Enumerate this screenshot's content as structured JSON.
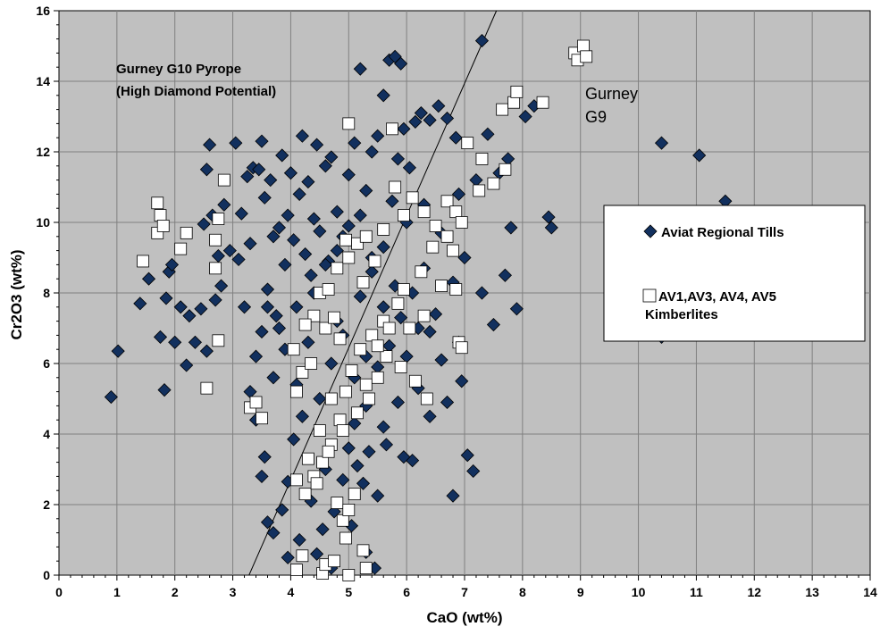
{
  "colors": {
    "plot_background": "#c0c0c0",
    "gridline": "#808080",
    "till_marker": "#12305e",
    "kimberlite_marker": "#ffffff"
  },
  "chart_data": {
    "type": "scatter",
    "xlabel": "CaO (wt%)",
    "ylabel": "Cr2O3 (wt%)",
    "xlim": [
      0,
      14
    ],
    "ylim": [
      0,
      16
    ],
    "x_ticks": [
      "0",
      "1",
      "2",
      "3",
      "4",
      "5",
      "6",
      "7",
      "8",
      "9",
      "10",
      "11",
      "12",
      "13",
      "14"
    ],
    "y_ticks": [
      "0",
      "2",
      "4",
      "6",
      "8",
      "10",
      "12",
      "14",
      "16"
    ],
    "grid": true,
    "legend_position": "right",
    "annotations": [
      {
        "id": "g10-line1",
        "text": "Gurney G10 Pyrope"
      },
      {
        "id": "g10-line2",
        "text": "(High Diamond Potential)"
      },
      {
        "id": "g9-line1",
        "text": "Gurney"
      },
      {
        "id": "g9-line2",
        "text": "G9"
      }
    ],
    "divider_line": {
      "x1": 3.28,
      "y1": 0,
      "x2": 7.55,
      "y2": 16
    },
    "series": [
      {
        "name": "Aviat Regional Tills",
        "marker": "diamond",
        "points": [
          [
            0.9,
            5.05
          ],
          [
            1.02,
            6.35
          ],
          [
            1.4,
            7.7
          ],
          [
            1.55,
            8.4
          ],
          [
            1.75,
            6.75
          ],
          [
            1.85,
            7.85
          ],
          [
            1.82,
            5.25
          ],
          [
            1.9,
            8.6
          ],
          [
            1.95,
            8.8
          ],
          [
            2.0,
            6.6
          ],
          [
            2.1,
            7.6
          ],
          [
            2.2,
            5.95
          ],
          [
            2.25,
            7.35
          ],
          [
            2.35,
            6.6
          ],
          [
            2.45,
            7.55
          ],
          [
            2.55,
            6.35
          ],
          [
            2.5,
            9.95
          ],
          [
            2.55,
            11.5
          ],
          [
            2.6,
            12.2
          ],
          [
            2.65,
            10.2
          ],
          [
            2.7,
            7.8
          ],
          [
            2.75,
            9.05
          ],
          [
            2.8,
            8.2
          ],
          [
            2.85,
            10.5
          ],
          [
            2.95,
            9.2
          ],
          [
            3.05,
            12.25
          ],
          [
            3.1,
            8.95
          ],
          [
            3.15,
            10.25
          ],
          [
            3.2,
            7.6
          ],
          [
            3.25,
            11.3
          ],
          [
            3.3,
            9.4
          ],
          [
            3.35,
            11.55
          ],
          [
            3.4,
            6.2
          ],
          [
            3.45,
            11.5
          ],
          [
            3.5,
            12.3
          ],
          [
            3.55,
            10.7
          ],
          [
            3.6,
            8.1
          ],
          [
            3.65,
            11.2
          ],
          [
            3.7,
            9.6
          ],
          [
            3.75,
            7.35
          ],
          [
            3.8,
            9.85
          ],
          [
            3.85,
            11.9
          ],
          [
            3.9,
            8.8
          ],
          [
            3.95,
            10.2
          ],
          [
            4.0,
            11.4
          ],
          [
            4.05,
            9.5
          ],
          [
            4.1,
            7.6
          ],
          [
            4.15,
            10.8
          ],
          [
            4.2,
            12.45
          ],
          [
            4.25,
            9.1
          ],
          [
            4.3,
            11.15
          ],
          [
            4.35,
            8.5
          ],
          [
            4.4,
            10.1
          ],
          [
            4.45,
            12.2
          ],
          [
            4.5,
            9.75
          ],
          [
            4.6,
            11.6
          ],
          [
            4.65,
            8.9
          ],
          [
            4.7,
            11.85
          ],
          [
            4.8,
            10.3
          ],
          [
            4.9,
            9.6
          ],
          [
            5.0,
            11.35
          ],
          [
            5.1,
            12.25
          ],
          [
            5.2,
            14.35
          ],
          [
            5.3,
            10.9
          ],
          [
            5.4,
            12.0
          ],
          [
            5.5,
            12.45
          ],
          [
            5.6,
            13.6
          ],
          [
            5.7,
            14.6
          ],
          [
            5.8,
            14.7
          ],
          [
            5.9,
            14.5
          ],
          [
            5.75,
            10.6
          ],
          [
            5.85,
            11.8
          ],
          [
            5.95,
            12.65
          ],
          [
            6.05,
            11.55
          ],
          [
            6.15,
            12.85
          ],
          [
            6.25,
            13.1
          ],
          [
            6.4,
            12.9
          ],
          [
            6.55,
            13.3
          ],
          [
            6.7,
            12.95
          ],
          [
            6.85,
            12.4
          ],
          [
            7.3,
            15.15
          ],
          [
            7.4,
            12.5
          ],
          [
            7.6,
            11.4
          ],
          [
            7.75,
            11.8
          ],
          [
            7.8,
            9.85
          ],
          [
            8.05,
            13.0
          ],
          [
            8.2,
            13.3
          ],
          [
            8.45,
            10.15
          ],
          [
            8.5,
            9.85
          ],
          [
            7.9,
            7.55
          ],
          [
            7.05,
            3.4
          ],
          [
            7.15,
            2.95
          ],
          [
            6.8,
            2.25
          ],
          [
            6.1,
            3.25
          ],
          [
            5.95,
            3.35
          ],
          [
            5.5,
            2.25
          ],
          [
            5.3,
            0.65
          ],
          [
            5.45,
            0.2
          ],
          [
            4.45,
            0.6
          ],
          [
            4.7,
            0.2
          ],
          [
            3.6,
            1.5
          ],
          [
            3.7,
            1.2
          ],
          [
            3.85,
            1.85
          ],
          [
            3.95,
            2.65
          ],
          [
            4.05,
            3.85
          ],
          [
            3.5,
            2.8
          ],
          [
            3.55,
            3.35
          ],
          [
            3.4,
            4.4
          ],
          [
            3.3,
            5.2
          ],
          [
            3.7,
            5.6
          ],
          [
            10.4,
            12.25
          ],
          [
            11.05,
            11.9
          ],
          [
            11.5,
            10.6
          ],
          [
            10.4,
            6.75
          ],
          [
            6.6,
            6.1
          ],
          [
            6.95,
            5.5
          ],
          [
            6.7,
            4.9
          ],
          [
            6.4,
            4.5
          ],
          [
            6.2,
            5.3
          ],
          [
            5.6,
            4.2
          ],
          [
            4.3,
            6.6
          ],
          [
            4.8,
            7.2
          ],
          [
            5.2,
            7.9
          ],
          [
            5.4,
            8.6
          ],
          [
            5.6,
            9.3
          ],
          [
            6.0,
            10.0
          ],
          [
            6.3,
            10.5
          ],
          [
            6.6,
            9.7
          ],
          [
            6.9,
            10.8
          ],
          [
            7.2,
            11.2
          ],
          [
            4.5,
            5.0
          ],
          [
            4.7,
            6.0
          ],
          [
            4.9,
            6.8
          ],
          [
            5.1,
            5.6
          ],
          [
            5.3,
            4.8
          ],
          [
            5.5,
            5.9
          ],
          [
            5.7,
            6.5
          ],
          [
            5.9,
            7.3
          ],
          [
            6.1,
            8.0
          ],
          [
            6.3,
            8.7
          ],
          [
            6.5,
            7.4
          ],
          [
            6.8,
            8.3
          ],
          [
            7.0,
            9.0
          ],
          [
            7.3,
            8.0
          ],
          [
            7.5,
            7.1
          ],
          [
            7.7,
            8.5
          ],
          [
            6.9,
            6.6
          ],
          [
            6.4,
            6.9
          ],
          [
            5.0,
            3.6
          ],
          [
            4.6,
            3.0
          ],
          [
            4.2,
            4.5
          ],
          [
            4.1,
            5.4
          ],
          [
            3.9,
            6.4
          ],
          [
            3.8,
            7.0
          ],
          [
            3.6,
            7.6
          ],
          [
            3.5,
            6.9
          ],
          [
            4.4,
            8.0
          ],
          [
            4.6,
            8.8
          ],
          [
            4.8,
            9.2
          ],
          [
            5.0,
            9.9
          ],
          [
            5.2,
            10.2
          ],
          [
            5.4,
            9.0
          ],
          [
            5.8,
            8.2
          ],
          [
            6.0,
            6.2
          ],
          [
            6.2,
            7.0
          ],
          [
            5.6,
            7.6
          ],
          [
            5.3,
            6.2
          ],
          [
            5.1,
            4.3
          ],
          [
            4.9,
            2.7
          ],
          [
            4.75,
            1.8
          ],
          [
            5.05,
            1.4
          ],
          [
            5.25,
            2.6
          ],
          [
            4.35,
            2.1
          ],
          [
            4.15,
            1.0
          ],
          [
            3.95,
            0.5
          ],
          [
            4.55,
            1.3
          ],
          [
            5.15,
            3.1
          ],
          [
            5.35,
            3.5
          ],
          [
            5.65,
            3.7
          ],
          [
            5.85,
            4.9
          ]
        ]
      },
      {
        "name": "AV1,AV3, AV4, AV5\nKimberlites",
        "marker": "square",
        "points": [
          [
            1.45,
            8.9
          ],
          [
            1.7,
            9.7
          ],
          [
            1.75,
            10.2
          ],
          [
            1.7,
            10.55
          ],
          [
            1.8,
            9.9
          ],
          [
            2.1,
            9.25
          ],
          [
            2.2,
            9.7
          ],
          [
            2.55,
            5.3
          ],
          [
            2.7,
            8.7
          ],
          [
            2.75,
            10.1
          ],
          [
            2.7,
            9.5
          ],
          [
            2.85,
            11.2
          ],
          [
            2.75,
            6.65
          ],
          [
            3.3,
            4.75
          ],
          [
            3.4,
            4.9
          ],
          [
            3.5,
            4.45
          ],
          [
            4.1,
            5.2
          ],
          [
            4.2,
            5.75
          ],
          [
            4.4,
            7.35
          ],
          [
            4.5,
            8.0
          ],
          [
            4.6,
            7.0
          ],
          [
            4.75,
            7.3
          ],
          [
            4.85,
            6.7
          ],
          [
            4.95,
            9.5
          ],
          [
            5.0,
            12.8
          ],
          [
            5.15,
            9.4
          ],
          [
            5.25,
            8.3
          ],
          [
            5.45,
            8.9
          ],
          [
            5.6,
            9.8
          ],
          [
            5.75,
            12.65
          ],
          [
            5.8,
            11.0
          ],
          [
            5.95,
            10.2
          ],
          [
            6.1,
            10.7
          ],
          [
            6.3,
            10.3
          ],
          [
            6.5,
            9.9
          ],
          [
            6.7,
            10.6
          ],
          [
            6.85,
            10.3
          ],
          [
            7.05,
            12.25
          ],
          [
            7.3,
            11.8
          ],
          [
            7.5,
            11.1
          ],
          [
            7.65,
            13.2
          ],
          [
            7.85,
            13.4
          ],
          [
            7.9,
            13.7
          ],
          [
            8.35,
            13.4
          ],
          [
            8.9,
            14.8
          ],
          [
            9.05,
            15.0
          ],
          [
            8.95,
            14.6
          ],
          [
            9.1,
            14.7
          ],
          [
            7.7,
            11.5
          ],
          [
            7.25,
            10.9
          ],
          [
            6.95,
            10.0
          ],
          [
            6.8,
            9.2
          ],
          [
            6.6,
            8.2
          ],
          [
            6.85,
            8.1
          ],
          [
            6.9,
            6.6
          ],
          [
            6.95,
            6.45
          ],
          [
            6.3,
            7.35
          ],
          [
            6.05,
            7.0
          ],
          [
            5.85,
            7.7
          ],
          [
            5.6,
            7.2
          ],
          [
            5.4,
            6.8
          ],
          [
            5.2,
            6.4
          ],
          [
            5.05,
            5.8
          ],
          [
            4.95,
            5.2
          ],
          [
            4.85,
            4.4
          ],
          [
            4.7,
            3.7
          ],
          [
            4.55,
            3.2
          ],
          [
            4.4,
            2.8
          ],
          [
            4.25,
            2.3
          ],
          [
            4.1,
            2.7
          ],
          [
            4.3,
            3.3
          ],
          [
            4.5,
            4.1
          ],
          [
            4.7,
            5.0
          ],
          [
            4.8,
            2.05
          ],
          [
            4.9,
            1.55
          ],
          [
            5.0,
            1.85
          ],
          [
            5.1,
            2.3
          ],
          [
            4.95,
            1.05
          ],
          [
            4.2,
            0.55
          ],
          [
            4.1,
            0.15
          ],
          [
            4.55,
            0.05
          ],
          [
            4.6,
            0.3
          ],
          [
            4.75,
            0.4
          ],
          [
            5.0,
            0.0
          ],
          [
            5.25,
            0.7
          ],
          [
            5.3,
            0.2
          ],
          [
            6.35,
            5.0
          ],
          [
            6.15,
            5.5
          ],
          [
            5.9,
            5.9
          ],
          [
            5.65,
            6.2
          ],
          [
            5.5,
            5.6
          ],
          [
            5.35,
            5.0
          ],
          [
            5.15,
            4.6
          ],
          [
            4.9,
            4.1
          ],
          [
            4.65,
            3.5
          ],
          [
            4.45,
            2.6
          ],
          [
            5.3,
            5.4
          ],
          [
            5.5,
            6.5
          ],
          [
            5.7,
            7.0
          ],
          [
            5.95,
            8.1
          ],
          [
            6.25,
            8.6
          ],
          [
            6.45,
            9.3
          ],
          [
            6.7,
            9.6
          ],
          [
            4.35,
            6.0
          ],
          [
            4.05,
            6.4
          ],
          [
            4.25,
            7.1
          ],
          [
            4.65,
            8.1
          ],
          [
            4.8,
            8.7
          ],
          [
            5.0,
            9.0
          ],
          [
            5.3,
            9.6
          ]
        ]
      }
    ]
  }
}
